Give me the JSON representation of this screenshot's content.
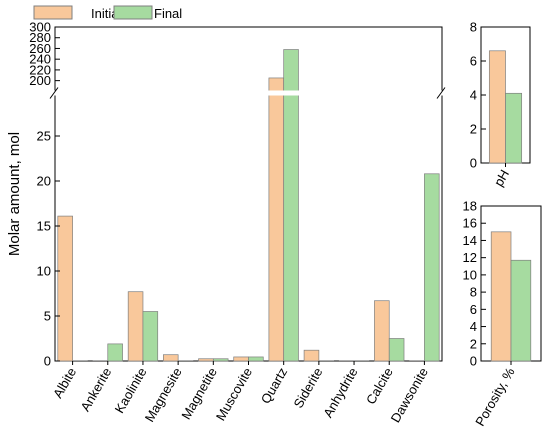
{
  "colors": {
    "initial": "#f9c89b",
    "final": "#a6dba0",
    "edge": "#7f7f7f"
  },
  "legend": {
    "position": "top-left",
    "items": [
      "Initial",
      "Final"
    ]
  },
  "chart_data": [
    {
      "type": "bar",
      "categories": [
        "Albite",
        "Ankerite",
        "Kaolinite",
        "Magnesite",
        "Magnetite",
        "Muscovite",
        "Quartz",
        "Siderite",
        "Anhydrite",
        "Calcite",
        "Dawsonite"
      ],
      "series": [
        {
          "name": "Initial",
          "values": [
            16.1,
            0,
            7.7,
            0.7,
            0.25,
            0.45,
            205,
            1.2,
            0,
            6.7,
            0
          ]
        },
        {
          "name": "Final",
          "values": [
            0,
            1.9,
            5.5,
            0,
            0.25,
            0.45,
            258,
            0,
            0,
            2.5,
            20.8
          ]
        }
      ],
      "ylabel": "Molar amount, mol",
      "yaxis_break": true,
      "ylim_lower": [
        0,
        29
      ],
      "ylim_upper": [
        190,
        300
      ],
      "yticks_lower": [
        0,
        5,
        10,
        15,
        20,
        25
      ],
      "yticks_upper": [
        200,
        220,
        240,
        260,
        280,
        300
      ]
    },
    {
      "type": "bar",
      "categories": [
        "pH"
      ],
      "series": [
        {
          "name": "Initial",
          "values": [
            6.6
          ]
        },
        {
          "name": "Final",
          "values": [
            4.1
          ]
        }
      ],
      "ylim": [
        0,
        8
      ],
      "yticks": [
        0,
        2,
        4,
        6,
        8
      ]
    },
    {
      "type": "bar",
      "categories": [
        "Porosity, %"
      ],
      "series": [
        {
          "name": "Initial",
          "values": [
            15.0
          ]
        },
        {
          "name": "Final",
          "values": [
            11.7
          ]
        }
      ],
      "ylim": [
        0,
        18
      ],
      "yticks": [
        0,
        2,
        4,
        6,
        8,
        10,
        12,
        14,
        16,
        18
      ]
    }
  ]
}
